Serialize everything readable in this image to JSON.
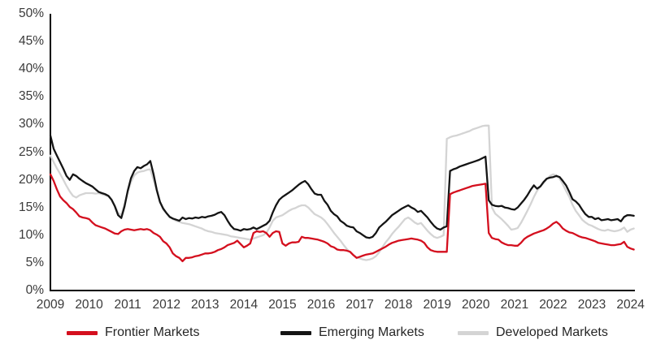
{
  "chart_data": {
    "type": "line",
    "title": "",
    "xlabel": "",
    "ylabel": "",
    "grid": false,
    "legend_position": "bottom",
    "x_frequency": "monthly",
    "x_start": "2009-01",
    "x_end": "2024-02",
    "x_axis": {
      "labels": [
        "2009",
        "2010",
        "2011",
        "2012",
        "2013",
        "2014",
        "2015",
        "2016",
        "2017",
        "2018",
        "2019",
        "2020",
        "2021",
        "2022",
        "2023",
        "2024"
      ]
    },
    "y_axis": {
      "ticks": [
        "0%",
        "5%",
        "10%",
        "15%",
        "20%",
        "25%",
        "30%",
        "35%",
        "40%",
        "45%",
        "50%"
      ],
      "min": 0,
      "max": 50
    },
    "axis_color": "#000000",
    "tick_label_color": "#3a3a3a",
    "series": [
      {
        "name": "Frontier Markets",
        "color": "#d40f1e",
        "values": [
          21.0,
          19.8,
          18.3,
          17.0,
          16.3,
          15.8,
          15.1,
          14.7,
          14.1,
          13.4,
          13.2,
          13.1,
          12.9,
          12.3,
          11.8,
          11.6,
          11.4,
          11.2,
          10.9,
          10.6,
          10.3,
          10.2,
          10.7,
          11.0,
          11.1,
          11.0,
          10.9,
          11.0,
          11.1,
          11.0,
          11.1,
          10.9,
          10.4,
          10.1,
          9.7,
          8.9,
          8.5,
          7.8,
          6.7,
          6.2,
          5.9,
          5.3,
          5.9,
          5.9,
          6.0,
          6.2,
          6.3,
          6.5,
          6.7,
          6.7,
          6.8,
          7.0,
          7.3,
          7.5,
          7.8,
          8.2,
          8.4,
          8.6,
          9.0,
          8.4,
          7.8,
          8.1,
          8.5,
          10.4,
          10.7,
          10.6,
          10.7,
          10.4,
          9.7,
          10.4,
          10.7,
          10.6,
          8.5,
          8.1,
          8.5,
          8.7,
          8.7,
          8.8,
          9.7,
          9.5,
          9.5,
          9.4,
          9.3,
          9.2,
          9.0,
          8.8,
          8.5,
          8.0,
          7.8,
          7.4,
          7.3,
          7.3,
          7.2,
          7.0,
          6.4,
          5.9,
          6.1,
          6.3,
          6.5,
          6.6,
          6.7,
          7.0,
          7.3,
          7.6,
          7.9,
          8.3,
          8.6,
          8.8,
          9.0,
          9.1,
          9.2,
          9.3,
          9.4,
          9.3,
          9.2,
          9.0,
          8.6,
          7.8,
          7.3,
          7.1,
          7.0,
          7.0,
          7.0,
          7.0,
          17.4,
          17.7,
          17.9,
          18.1,
          18.3,
          18.5,
          18.7,
          18.9,
          19.0,
          19.1,
          19.2,
          19.3,
          10.4,
          9.5,
          9.3,
          9.2,
          8.7,
          8.4,
          8.2,
          8.2,
          8.1,
          8.1,
          8.6,
          9.3,
          9.7,
          10.0,
          10.3,
          10.5,
          10.7,
          10.9,
          11.2,
          11.6,
          12.1,
          12.4,
          11.9,
          11.2,
          10.8,
          10.5,
          10.4,
          10.1,
          9.8,
          9.6,
          9.5,
          9.3,
          9.1,
          8.9,
          8.6,
          8.5,
          8.4,
          8.3,
          8.2,
          8.2,
          8.3,
          8.4,
          8.8,
          7.9,
          7.6,
          7.4
        ]
      },
      {
        "name": "Emerging Markets",
        "color": "#141414",
        "values": [
          28.0,
          25.6,
          24.4,
          23.2,
          22.0,
          20.7,
          20.0,
          21.0,
          20.7,
          20.2,
          19.8,
          19.4,
          19.1,
          18.8,
          18.3,
          17.8,
          17.6,
          17.4,
          17.1,
          16.4,
          15.2,
          13.6,
          13.1,
          15.2,
          18.0,
          20.3,
          21.6,
          22.3,
          22.1,
          22.5,
          22.8,
          23.4,
          21.0,
          18.2,
          16.0,
          14.8,
          14.0,
          13.3,
          13.0,
          12.8,
          12.6,
          13.2,
          12.9,
          13.1,
          13.0,
          13.2,
          13.1,
          13.3,
          13.2,
          13.4,
          13.5,
          13.7,
          14.0,
          14.2,
          13.6,
          12.6,
          11.7,
          11.1,
          11.0,
          10.8,
          11.1,
          11.0,
          11.1,
          11.4,
          11.1,
          11.4,
          11.7,
          12.0,
          12.6,
          14.1,
          15.4,
          16.4,
          16.9,
          17.3,
          17.7,
          18.1,
          18.6,
          19.1,
          19.5,
          19.8,
          19.2,
          18.3,
          17.5,
          17.3,
          17.3,
          16.2,
          15.5,
          14.4,
          13.8,
          13.4,
          12.6,
          12.2,
          11.7,
          11.5,
          11.4,
          10.7,
          10.4,
          10.0,
          9.6,
          9.5,
          9.7,
          10.4,
          11.4,
          11.9,
          12.4,
          13.0,
          13.6,
          14.0,
          14.4,
          14.8,
          15.1,
          15.4,
          15.0,
          14.7,
          14.2,
          14.4,
          13.8,
          13.2,
          12.4,
          11.7,
          11.2,
          11.0,
          11.4,
          11.6,
          21.6,
          21.9,
          22.1,
          22.4,
          22.6,
          22.8,
          23.0,
          23.2,
          23.4,
          23.6,
          23.9,
          24.2,
          16.3,
          15.5,
          15.3,
          15.2,
          15.3,
          15.0,
          14.9,
          14.7,
          14.6,
          15.0,
          15.7,
          16.4,
          17.2,
          18.2,
          19.0,
          18.4,
          18.8,
          19.6,
          20.2,
          20.4,
          20.5,
          20.7,
          20.5,
          19.8,
          19.0,
          17.8,
          16.5,
          16.1,
          15.5,
          14.6,
          13.8,
          13.3,
          13.3,
          12.9,
          13.1,
          12.7,
          12.8,
          12.9,
          12.7,
          12.8,
          12.9,
          12.5,
          13.3,
          13.6,
          13.6,
          13.5
        ]
      },
      {
        "name": "Developed Markets",
        "color": "#d4d4d4",
        "values": [
          24.4,
          23.2,
          22.1,
          21.1,
          20.0,
          18.9,
          17.9,
          17.1,
          16.8,
          17.2,
          17.4,
          17.6,
          17.6,
          17.6,
          17.5,
          17.6,
          17.4,
          17.2,
          17.0,
          16.4,
          15.3,
          14.0,
          13.6,
          15.6,
          17.8,
          19.6,
          20.8,
          21.3,
          21.5,
          21.6,
          21.8,
          21.9,
          20.0,
          18.0,
          16.0,
          14.6,
          14.0,
          13.4,
          12.9,
          12.6,
          12.4,
          12.2,
          12.1,
          12.0,
          11.8,
          11.6,
          11.4,
          11.2,
          10.9,
          10.7,
          10.6,
          10.4,
          10.3,
          10.2,
          10.1,
          10.0,
          9.8,
          9.7,
          9.6,
          9.5,
          9.4,
          9.3,
          9.2,
          9.4,
          9.6,
          9.8,
          10.0,
          10.4,
          11.4,
          12.6,
          13.2,
          13.4,
          13.6,
          14.0,
          14.4,
          14.7,
          14.9,
          15.2,
          15.4,
          15.4,
          15.0,
          14.4,
          13.8,
          13.5,
          13.2,
          12.7,
          12.0,
          11.2,
          10.4,
          9.7,
          9.0,
          8.2,
          7.5,
          6.9,
          6.4,
          6.0,
          5.8,
          5.6,
          5.5,
          5.6,
          5.8,
          6.2,
          6.9,
          7.8,
          8.7,
          9.4,
          10.2,
          10.9,
          11.5,
          12.2,
          12.9,
          13.2,
          12.8,
          12.3,
          12.0,
          12.2,
          11.5,
          10.8,
          10.2,
          9.7,
          9.5,
          9.7,
          10.0,
          27.4,
          27.7,
          27.9,
          28.0,
          28.2,
          28.4,
          28.6,
          28.8,
          29.1,
          29.3,
          29.5,
          29.7,
          29.8,
          29.8,
          15.0,
          13.9,
          13.4,
          12.9,
          12.3,
          11.7,
          11.0,
          11.1,
          11.3,
          12.2,
          13.3,
          14.4,
          15.6,
          16.9,
          18.0,
          18.8,
          19.4,
          20.1,
          20.7,
          21.0,
          20.8,
          20.2,
          19.2,
          18.0,
          16.9,
          15.5,
          14.4,
          13.6,
          12.8,
          12.3,
          11.9,
          11.7,
          11.4,
          11.1,
          10.9,
          10.8,
          11.0,
          10.8,
          10.7,
          10.8,
          11.0,
          11.4,
          10.6,
          11.0,
          11.2
        ]
      }
    ]
  }
}
